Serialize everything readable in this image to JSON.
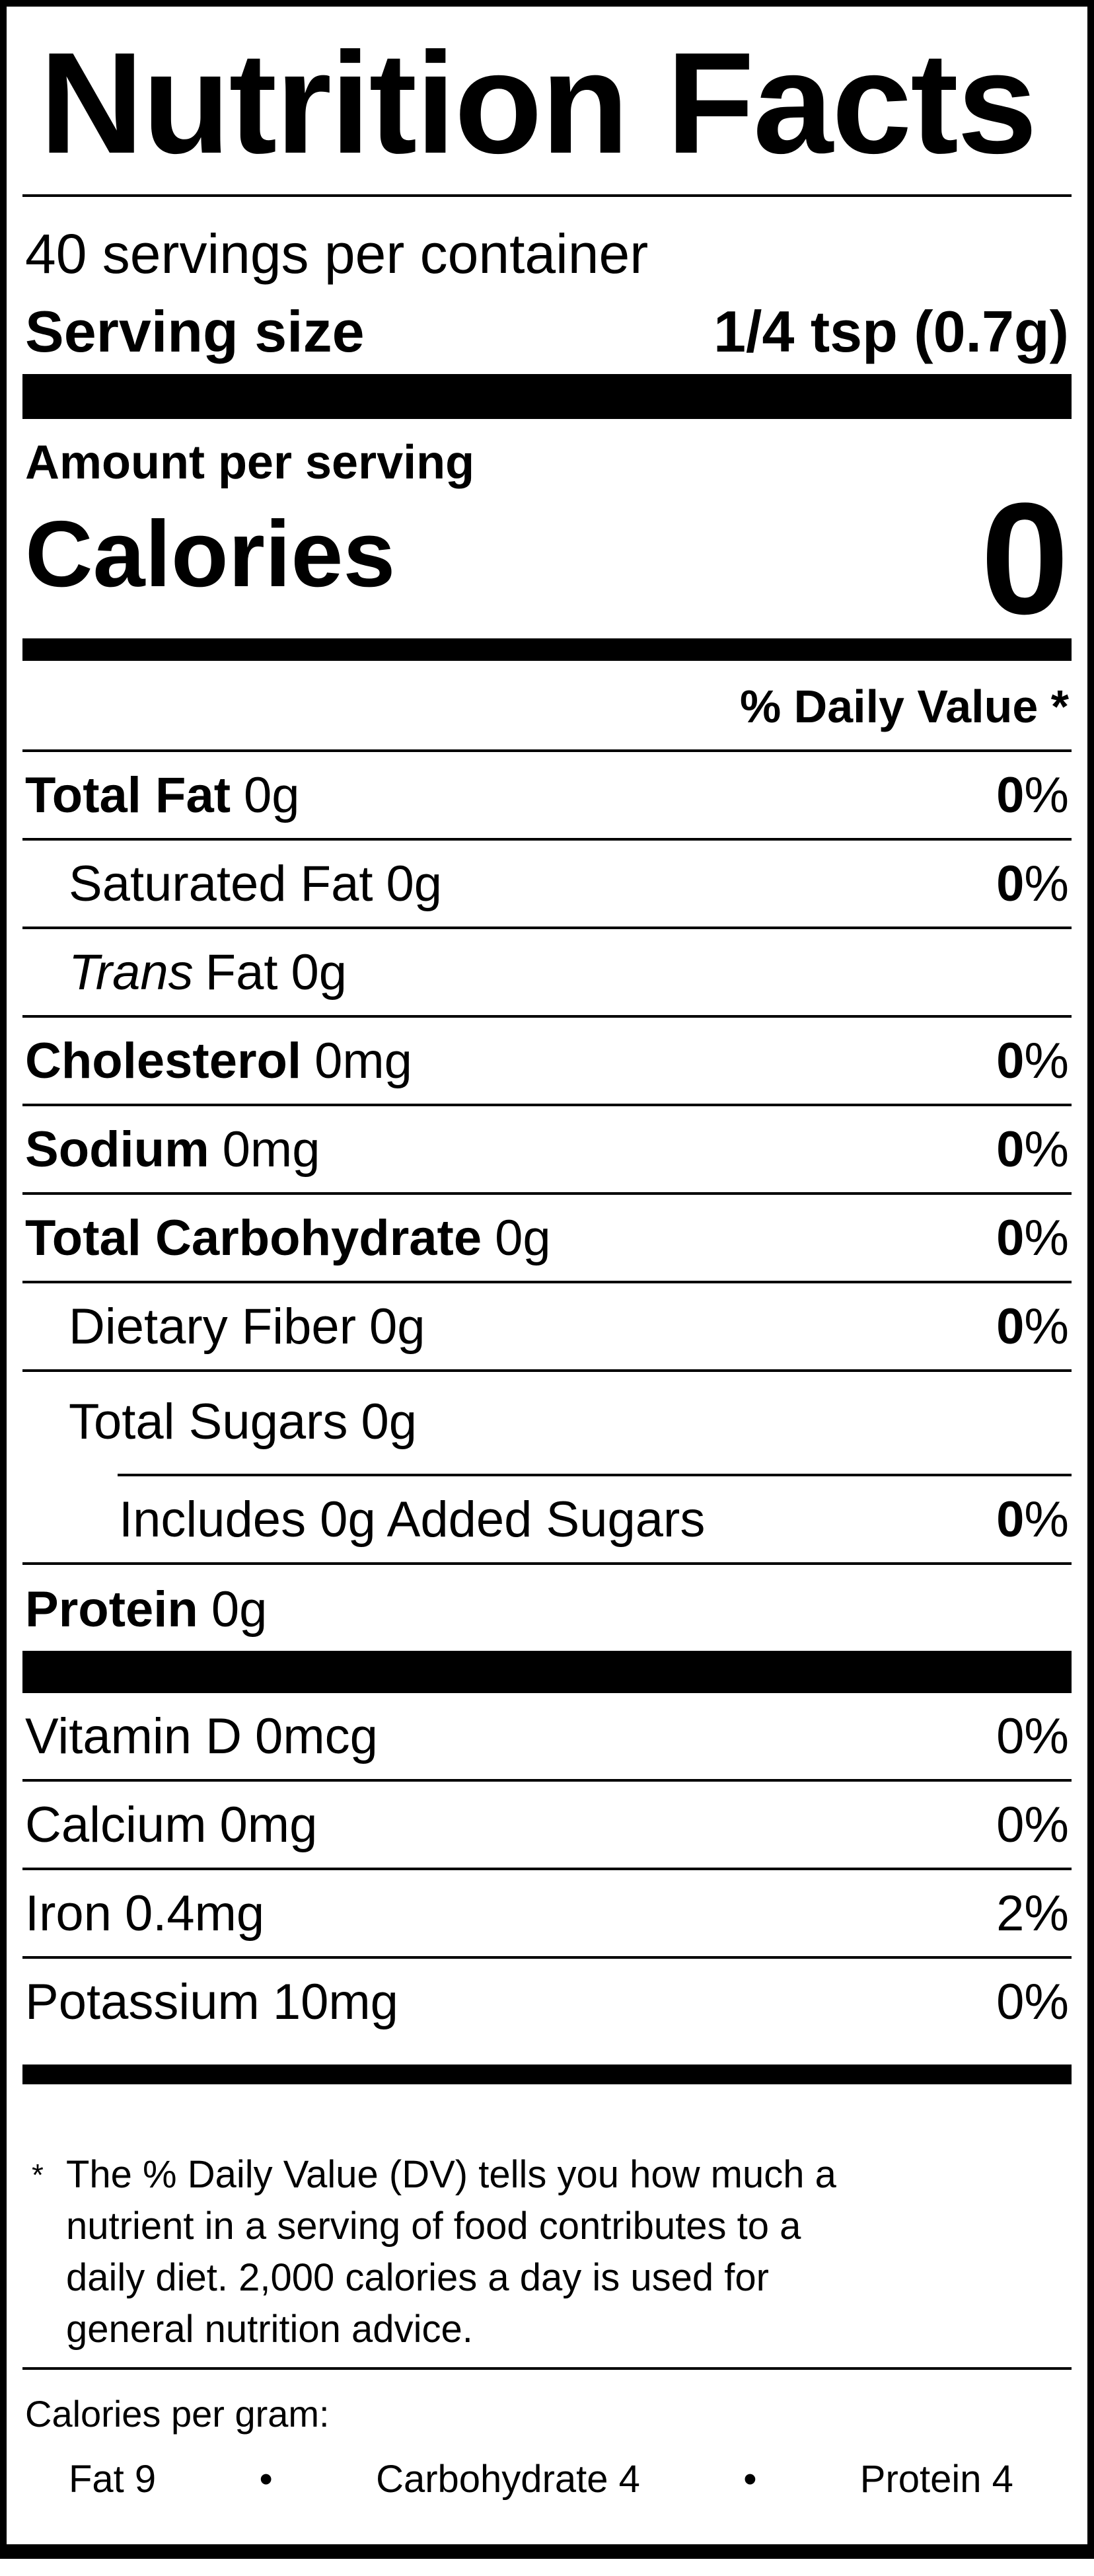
{
  "label": {
    "title": "Nutrition Facts",
    "servings_per_container": "40 servings per container",
    "serving_size": {
      "label": "Serving size",
      "value": "1/4 tsp (0.7g)"
    },
    "amount_per_serving": "Amount per serving",
    "calories": {
      "label": "Calories",
      "value": "0"
    },
    "daily_value_header": "% Daily Value *",
    "nutrients": [
      {
        "name": "Total Fat",
        "amount": "0g",
        "dv_num": "0",
        "dv_pct": "%"
      },
      {
        "name": "Saturated Fat",
        "amount": "0g",
        "dv_num": "0",
        "dv_pct": "%"
      },
      {
        "name_italic": "Trans",
        "name": "Fat",
        "amount": "0g"
      },
      {
        "name": "Cholesterol",
        "amount": "0mg",
        "dv_num": "0",
        "dv_pct": "%"
      },
      {
        "name": "Sodium",
        "amount": "0mg",
        "dv_num": "0",
        "dv_pct": "%"
      },
      {
        "name": "Total Carbohydrate",
        "amount": "0g",
        "dv_num": "0",
        "dv_pct": "%"
      },
      {
        "name": "Dietary Fiber",
        "amount": "0g",
        "dv_num": "0",
        "dv_pct": "%"
      },
      {
        "name": "Total Sugars",
        "amount": "0g"
      },
      {
        "name": "Includes 0g Added Sugars",
        "dv_num": "0",
        "dv_pct": "%"
      },
      {
        "name": "Protein",
        "amount": "0g"
      }
    ],
    "vitamins": [
      {
        "name": "Vitamin D",
        "amount": "0mcg",
        "dv": "0%"
      },
      {
        "name": "Calcium",
        "amount": "0mg",
        "dv": "0%"
      },
      {
        "name": "Iron",
        "amount": "0.4mg",
        "dv": "2%"
      },
      {
        "name": "Potassium",
        "amount": "10mg",
        "dv": "0%"
      }
    ],
    "footnote": {
      "marker": "*",
      "lines": [
        "The % Daily Value (DV) tells you how much a",
        "nutrient in a serving of food contributes to a",
        "daily diet. 2,000 calories a day is used for",
        "general nutrition advice."
      ]
    },
    "calories_per_gram": {
      "label": "Calories per gram:",
      "bullet": "•",
      "items": [
        "Fat 9",
        "Carbohydrate 4",
        "Protein 4"
      ]
    }
  },
  "colors": {
    "text": "#000000",
    "background": "#ffffff",
    "rule": "#000000"
  }
}
